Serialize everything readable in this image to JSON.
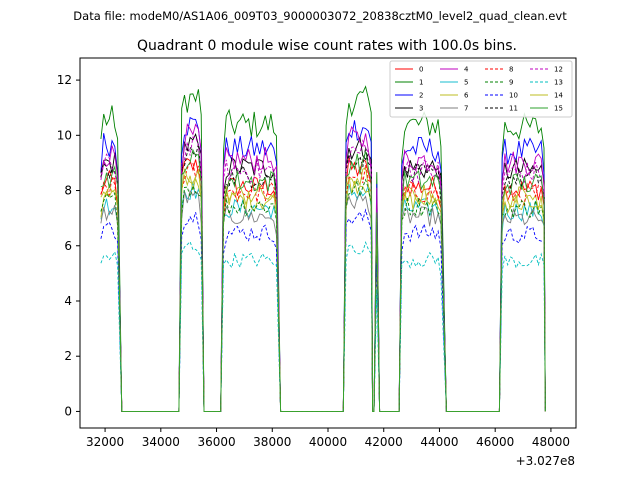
{
  "chart_data": {
    "type": "line",
    "suptitle": "Data file: modeM0/AS1A06_009T03_9000003072_20838cztM0_level2_quad_clean.evt",
    "title": "Quadrant 0 module wise count rates with 100.0s bins.",
    "xlabel": "",
    "ylabel": "",
    "x_offset_label": "+3.027e8",
    "xlim": [
      31100,
      48900
    ],
    "ylim": [
      -0.6,
      12.8
    ],
    "xticks": [
      32000,
      34000,
      36000,
      38000,
      40000,
      42000,
      44000,
      46000,
      48000
    ],
    "xtick_labels": [
      "32000",
      "34000",
      "36000",
      "38000",
      "40000",
      "42000",
      "44000",
      "46000",
      "48000"
    ],
    "yticks": [
      0,
      2,
      4,
      6,
      8,
      10,
      12
    ],
    "ytick_labels": [
      "0",
      "2",
      "4",
      "6",
      "8",
      "10",
      "12"
    ],
    "legend_position": "top-right",
    "segments": [
      {
        "start": 31850,
        "end": 32450,
        "drop": 32600
      },
      {
        "start": 34750,
        "end": 35450,
        "drop": 35550
      },
      {
        "start": 36250,
        "end": 38150,
        "drop": 38300
      },
      {
        "start": 40650,
        "end": 41550,
        "drop": 41600
      },
      {
        "start": 41750,
        "end": 41750,
        "drop": 41850
      },
      {
        "start": 42650,
        "end": 44050,
        "drop": 44250
      },
      {
        "start": 46250,
        "end": 47750,
        "drop": 47800
      }
    ],
    "gap_value": 0,
    "series": [
      {
        "name": "0",
        "color": "#ff0000",
        "dash": "solid",
        "level": 8.3
      },
      {
        "name": "1",
        "color": "#008000",
        "dash": "solid",
        "level": 10.6
      },
      {
        "name": "2",
        "color": "#0000ff",
        "dash": "solid",
        "level": 9.7
      },
      {
        "name": "3",
        "color": "#000000",
        "dash": "solid",
        "level": 9.0
      },
      {
        "name": "4",
        "color": "#bf00bf",
        "dash": "solid",
        "level": 9.3
      },
      {
        "name": "5",
        "color": "#17becf",
        "dash": "solid",
        "level": 7.5
      },
      {
        "name": "6",
        "color": "#bcbd22",
        "dash": "solid",
        "level": 7.8
      },
      {
        "name": "7",
        "color": "#7f7f7f",
        "dash": "solid",
        "level": 7.2
      },
      {
        "name": "8",
        "color": "#ff0000",
        "dash": "dashed",
        "level": 8.1
      },
      {
        "name": "9",
        "color": "#008000",
        "dash": "dashed",
        "level": 7.6
      },
      {
        "name": "10",
        "color": "#0000ff",
        "dash": "dashed",
        "level": 6.6
      },
      {
        "name": "11",
        "color": "#000000",
        "dash": "dashed",
        "level": 8.7
      },
      {
        "name": "12",
        "color": "#bf00bf",
        "dash": "dashed",
        "level": 8.9
      },
      {
        "name": "13",
        "color": "#00bfbf",
        "dash": "dashed",
        "level": 5.6
      },
      {
        "name": "14",
        "color": "#bcbd22",
        "dash": "solid",
        "level": 8.0
      },
      {
        "name": "15",
        "color": "#2ca02c",
        "dash": "solid",
        "level": 8.5
      }
    ]
  }
}
